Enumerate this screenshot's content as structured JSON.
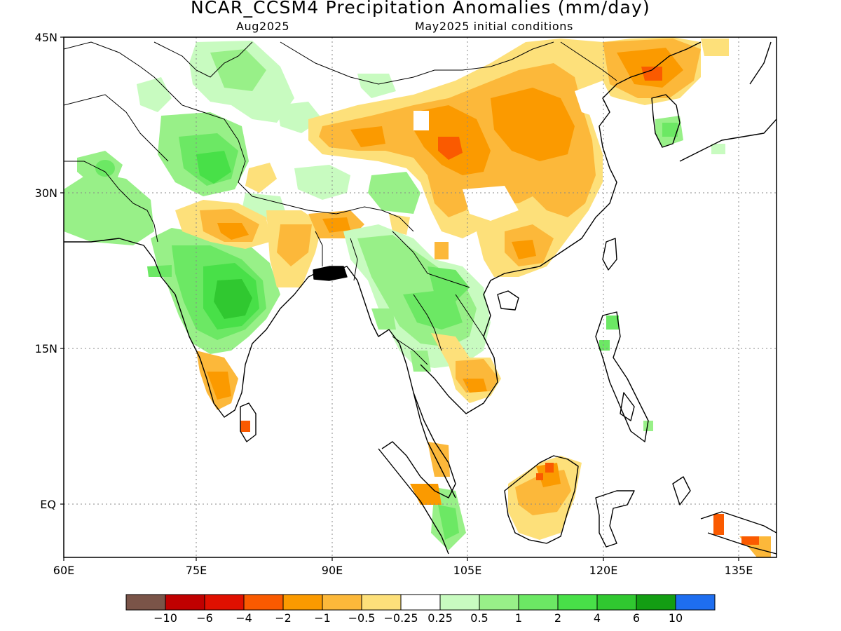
{
  "title": "NCAR_CCSM4 Precipitation Anomalies (mm/day)",
  "subtitle_left": "Aug2025",
  "subtitle_right": "May2025 initial conditions",
  "lat_labels": [
    "45N",
    "30N",
    "15N",
    "EQ"
  ],
  "lon_labels": [
    "60E",
    "75E",
    "90E",
    "105E",
    "120E",
    "135E"
  ],
  "colorbar": {
    "colors": [
      "#7a5448",
      "#c00000",
      "#e01000",
      "#fa5a00",
      "#fb9a00",
      "#fcb83a",
      "#fde07a",
      "#ffffff",
      "#c8fbc0",
      "#98f088",
      "#6ce864",
      "#48e048",
      "#30c830",
      "#139e13",
      "#1e6ef0"
    ],
    "labels": [
      "-10",
      "-6",
      "-4",
      "-2",
      "-1",
      "-0.5",
      "-0.25",
      "0.25",
      "0.5",
      "1",
      "2",
      "4",
      "6",
      "10"
    ]
  },
  "colors": {
    "land_outline": "#000000",
    "grid": "#888888"
  }
}
